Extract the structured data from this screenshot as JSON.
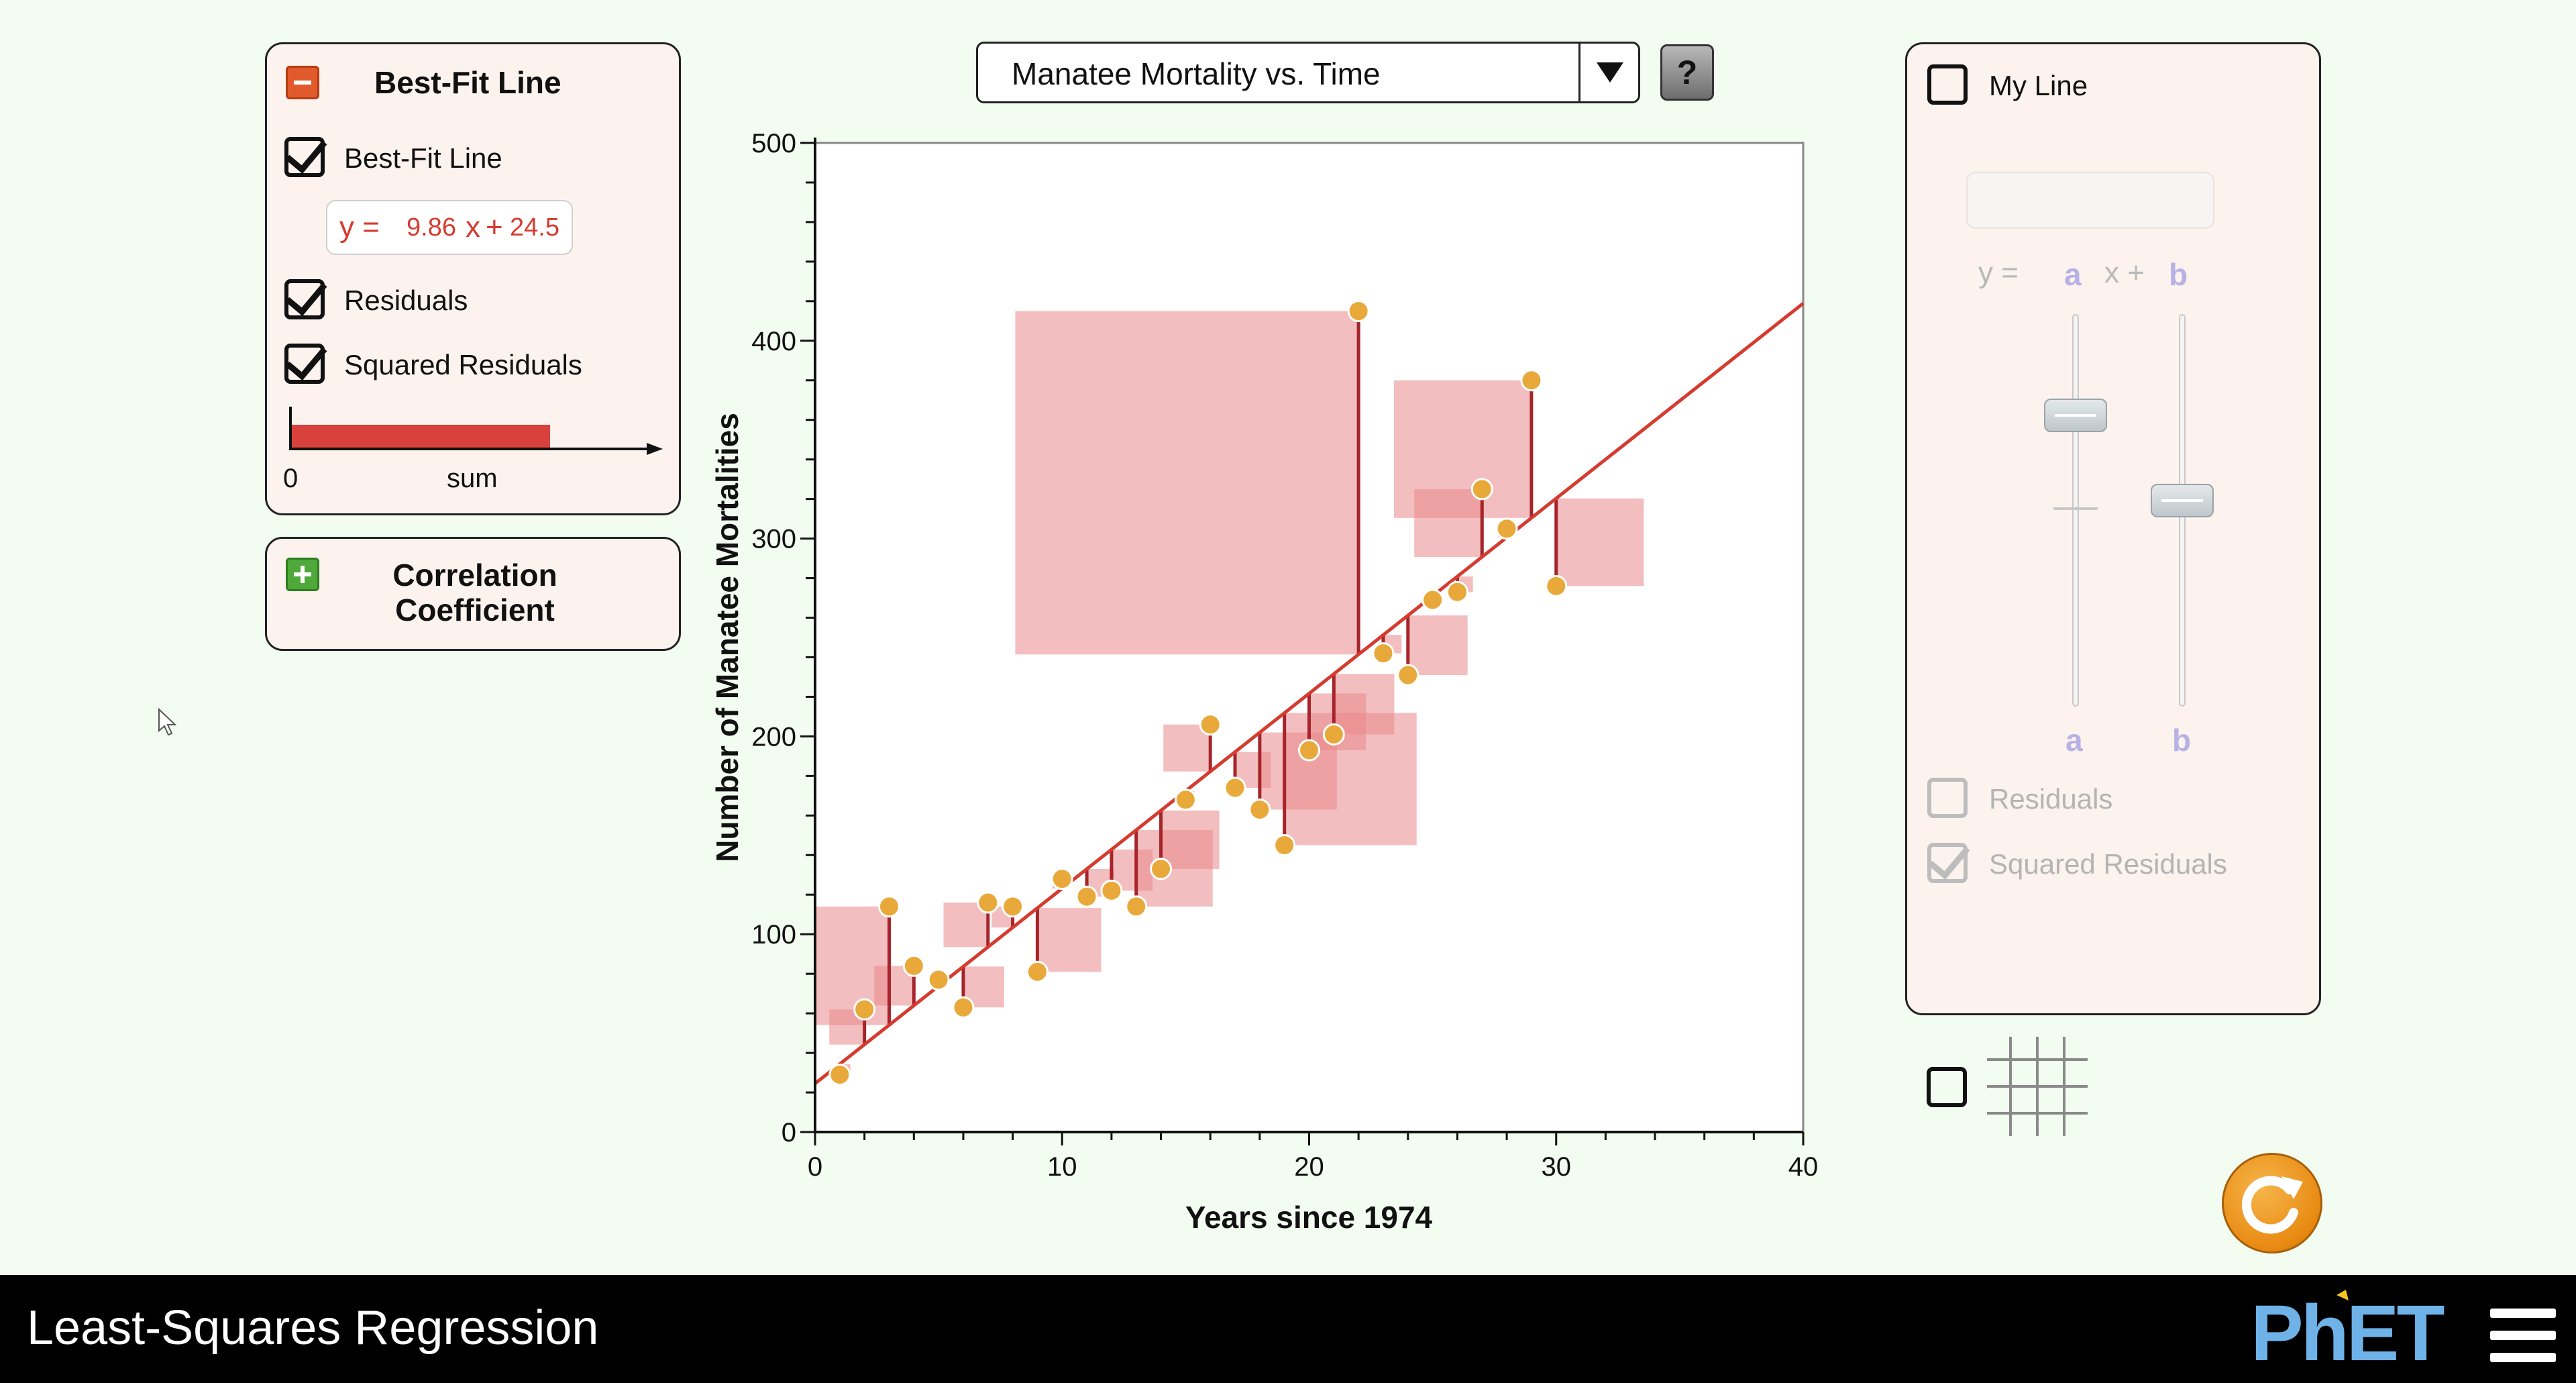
{
  "best_fit_panel": {
    "title": "Best-Fit Line",
    "best_fit_line_label": "Best-Fit Line",
    "equation": {
      "prefix": "y =",
      "slope": "9.86",
      "x": "x",
      "plus": "+",
      "intercept": "24.5"
    },
    "residuals_label": "Residuals",
    "squared_residuals_label": "Squared Residuals",
    "sum_zero": "0",
    "sum_label": "sum",
    "sum_fraction": 0.73
  },
  "correlation_panel": {
    "line1": "Correlation",
    "line2": "Coefficient"
  },
  "dataset": {
    "selected": "Manatee Mortality vs. Time",
    "help": "?"
  },
  "my_line_panel": {
    "title": "My Line",
    "y_eq": "y =",
    "a": "a",
    "x_plus": "x +",
    "b": "b",
    "slider_a_label": "a",
    "slider_b_label": "b",
    "residuals_label": "Residuals",
    "squared_residuals_label": "Squared Residuals"
  },
  "navbar": {
    "title": "Least-Squares Regression",
    "logo": "PhET"
  },
  "colors": {
    "fit_line": "#d53b2f",
    "square": "#e9888a",
    "point": "#e8a93a",
    "residual": "#a6242b"
  },
  "chart_data": {
    "type": "scatter",
    "xlabel": "Years since 1974",
    "ylabel": "Number of Manatee Mortalities",
    "xlim": [
      0,
      40
    ],
    "ylim": [
      0,
      500
    ],
    "xticks": [
      "0",
      "10",
      "20",
      "30",
      "40"
    ],
    "yticks": [
      "0",
      "100",
      "200",
      "300",
      "400",
      "500"
    ],
    "fit": {
      "slope": 9.86,
      "intercept": 24.5
    },
    "points": [
      [
        1,
        29
      ],
      [
        2,
        62
      ],
      [
        3,
        114
      ],
      [
        4,
        84
      ],
      [
        5,
        77
      ],
      [
        6,
        63
      ],
      [
        7,
        116
      ],
      [
        8,
        114
      ],
      [
        9,
        81
      ],
      [
        10,
        128
      ],
      [
        11,
        119
      ],
      [
        12,
        122
      ],
      [
        13,
        114
      ],
      [
        14,
        133
      ],
      [
        15,
        168
      ],
      [
        16,
        206
      ],
      [
        17,
        174
      ],
      [
        18,
        163
      ],
      [
        19,
        145
      ],
      [
        20,
        193
      ],
      [
        21,
        201
      ],
      [
        22,
        415
      ],
      [
        23,
        242
      ],
      [
        24,
        231
      ],
      [
        25,
        269
      ],
      [
        26,
        273
      ],
      [
        27,
        325
      ],
      [
        28,
        305
      ],
      [
        29,
        380
      ],
      [
        30,
        276
      ]
    ]
  }
}
